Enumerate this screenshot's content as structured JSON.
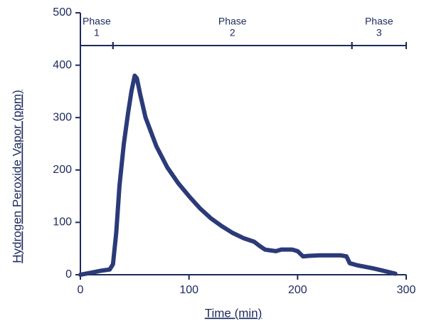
{
  "chart_data": {
    "type": "line",
    "x_label": "Time (min)",
    "y_label": "Hydrogen Peroxide Vapor (ppm)",
    "xlim": [
      0,
      300
    ],
    "ylim": [
      0,
      500
    ],
    "xticks": [
      0,
      100,
      200,
      300
    ],
    "yticks": [
      0,
      100,
      200,
      300,
      400,
      500
    ],
    "phases": [
      {
        "label": "Phase",
        "number": "1",
        "start": 0,
        "end": 30
      },
      {
        "label": "Phase",
        "number": "2",
        "start": 30,
        "end": 250
      },
      {
        "label": "Phase",
        "number": "3",
        "start": 250,
        "end": 300
      }
    ],
    "series": [
      {
        "color": "#2b3a78",
        "x": [
          0,
          10,
          20,
          27,
          30,
          33,
          36,
          40,
          44,
          47,
          50,
          52,
          55,
          60,
          70,
          80,
          90,
          100,
          110,
          120,
          130,
          140,
          150,
          160,
          165,
          170,
          180,
          185,
          195,
          200,
          205,
          210,
          220,
          230,
          240,
          245,
          248,
          255,
          270,
          280,
          290
        ],
        "values": [
          0,
          4,
          8,
          10,
          20,
          80,
          170,
          250,
          310,
          350,
          380,
          375,
          345,
          300,
          245,
          205,
          175,
          150,
          127,
          108,
          93,
          80,
          70,
          63,
          55,
          48,
          45,
          48,
          48,
          45,
          35,
          36,
          37,
          37,
          37,
          35,
          22,
          18,
          12,
          7,
          2
        ]
      }
    ]
  }
}
